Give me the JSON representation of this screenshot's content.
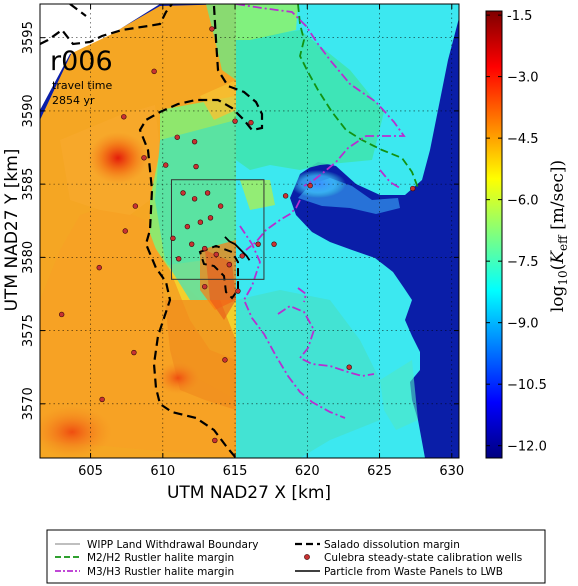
{
  "chart_data": {
    "type": "heatmap",
    "panel_label": "r006",
    "annotation_line1": "travel time",
    "annotation_line2": "2854 yr",
    "xlabel": "UTM NAD27 X [km]",
    "ylabel": "UTM NAD27 Y [km]",
    "colorbar_label": "log10(Keff [m/sec])",
    "xlim": [
      601.5,
      630.5
    ],
    "ylim": [
      3566.3,
      3597.3
    ],
    "x_ticks": [
      605,
      610,
      615,
      620,
      625,
      630
    ],
    "y_ticks": [
      3570,
      3575,
      3580,
      3585,
      3590,
      3595
    ],
    "colorbar_range": [
      -12.3,
      -1.4
    ],
    "colorbar_ticks": [
      "-1.5",
      "−3.0",
      "−4.5",
      "−6.0",
      "−7.5",
      "−9.0",
      "−10.5",
      "−12.0"
    ],
    "colorbar_tick_values": [
      -1.5,
      -3.0,
      -4.5,
      -6.0,
      -7.5,
      -9.0,
      -10.5,
      -12.0
    ],
    "colormap": [
      "#00007f",
      "#0000ff",
      "#007fff",
      "#00ffff",
      "#7fff7f",
      "#ffff00",
      "#ff7f00",
      "#ff0000",
      "#7f0000"
    ],
    "grid": true,
    "wipp_boundary": {
      "x": [
        610.6,
        617.0
      ],
      "y": [
        3578.5,
        3585.3
      ]
    },
    "wells": [
      {
        "x": 609.4,
        "y": 3592.7
      },
      {
        "x": 613.4,
        "y": 3595.6
      },
      {
        "x": 607.3,
        "y": 3589.6
      },
      {
        "x": 608.7,
        "y": 3586.8
      },
      {
        "x": 612.2,
        "y": 3587.9
      },
      {
        "x": 610.2,
        "y": 3586.3
      },
      {
        "x": 615.0,
        "y": 3589.3
      },
      {
        "x": 616.1,
        "y": 3589.2
      },
      {
        "x": 608.1,
        "y": 3583.5
      },
      {
        "x": 607.4,
        "y": 3581.8
      },
      {
        "x": 611.4,
        "y": 3584.4
      },
      {
        "x": 612.2,
        "y": 3584.0
      },
      {
        "x": 613.1,
        "y": 3584.4
      },
      {
        "x": 613.3,
        "y": 3582.7
      },
      {
        "x": 612.6,
        "y": 3582.4
      },
      {
        "x": 611.7,
        "y": 3582.1
      },
      {
        "x": 610.7,
        "y": 3581.3
      },
      {
        "x": 611.1,
        "y": 3579.9
      },
      {
        "x": 612.0,
        "y": 3580.9
      },
      {
        "x": 612.9,
        "y": 3580.6
      },
      {
        "x": 613.7,
        "y": 3580.2
      },
      {
        "x": 614.6,
        "y": 3579.5
      },
      {
        "x": 615.5,
        "y": 3580.1
      },
      {
        "x": 616.6,
        "y": 3580.9
      },
      {
        "x": 617.7,
        "y": 3580.9
      },
      {
        "x": 618.5,
        "y": 3584.2
      },
      {
        "x": 620.2,
        "y": 3584.9
      },
      {
        "x": 612.3,
        "y": 3586.2
      },
      {
        "x": 614.0,
        "y": 3583.5
      },
      {
        "x": 605.6,
        "y": 3579.3
      },
      {
        "x": 603.0,
        "y": 3576.1
      },
      {
        "x": 608.0,
        "y": 3573.5
      },
      {
        "x": 614.3,
        "y": 3573.0
      },
      {
        "x": 605.8,
        "y": 3570.3
      },
      {
        "x": 622.9,
        "y": 3572.5
      },
      {
        "x": 613.6,
        "y": 3567.5
      },
      {
        "x": 612.9,
        "y": 3578.0
      },
      {
        "x": 615.2,
        "y": 3577.7
      },
      {
        "x": 627.3,
        "y": 3584.7
      },
      {
        "x": 611.0,
        "y": 3588.2
      }
    ],
    "particle_path": {
      "x": [
        614.3,
        614.6,
        615.0,
        615.3,
        615.6,
        615.8,
        616.0
      ],
      "y": [
        3581.4,
        3581.1,
        3580.9,
        3580.6,
        3580.3,
        3580.1,
        3579.8
      ]
    },
    "legend": [
      {
        "label": "WIPP Land Withdrawal Boundary",
        "style": "thin-solid",
        "color": "#555555"
      },
      {
        "label": "M2/H2 Rustler halite margin",
        "style": "dashed",
        "color": "#129212"
      },
      {
        "label": "M3/H3 Rustler halite margin",
        "style": "dash-dot",
        "color": "#b72fd0"
      },
      {
        "label": "Salado dissolution margin",
        "style": "thick-dashed",
        "color": "#000000"
      },
      {
        "label": "Culebra steady-state calibration wells",
        "style": "marker",
        "color": "#c83232"
      },
      {
        "label": "Particle from Waste Panels to LWB",
        "style": "solid",
        "color": "#000000"
      }
    ]
  }
}
